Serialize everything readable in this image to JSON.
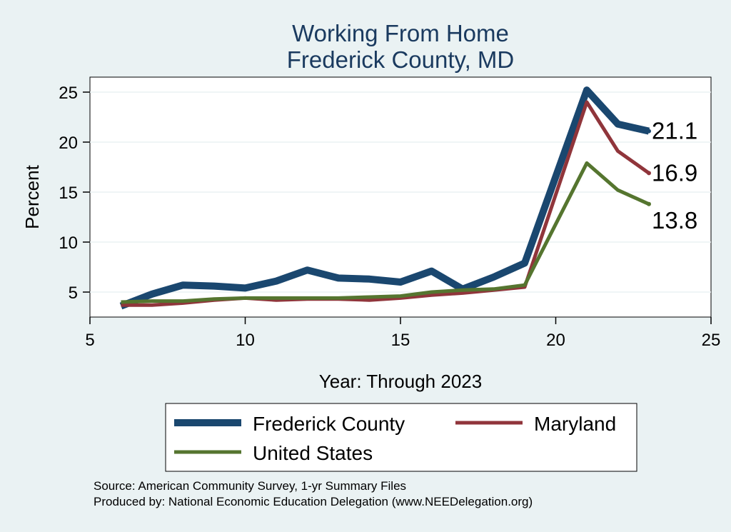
{
  "chart_data": {
    "type": "line",
    "title": "Working From Home",
    "subtitle": "Frederick County, MD",
    "xlabel": "Year: Through 2023",
    "ylabel": "Percent",
    "xlim": [
      5,
      25
    ],
    "ylim": [
      2.5,
      26.5
    ],
    "xticks": [
      5,
      10,
      15,
      20,
      25
    ],
    "yticks": [
      5,
      10,
      15,
      20,
      25
    ],
    "grid": true,
    "legend_position": "bottom",
    "series": [
      {
        "name": "Frederick County",
        "color": "#1a476f",
        "x": [
          6,
          7,
          8,
          9,
          10,
          11,
          12,
          13,
          14,
          15,
          16,
          17,
          18,
          19,
          21,
          22,
          23
        ],
        "y": [
          3.6,
          4.8,
          5.7,
          5.6,
          5.4,
          6.1,
          7.2,
          6.4,
          6.3,
          6.0,
          7.1,
          5.3,
          6.5,
          7.9,
          25.2,
          21.8,
          21.1
        ],
        "end_label": "21.1"
      },
      {
        "name": "Maryland",
        "color": "#90353b",
        "x": [
          6,
          7,
          8,
          9,
          10,
          11,
          12,
          13,
          14,
          15,
          16,
          17,
          18,
          19,
          21,
          22,
          23
        ],
        "y": [
          3.7,
          3.7,
          3.9,
          4.2,
          4.4,
          4.2,
          4.3,
          4.3,
          4.2,
          4.4,
          4.7,
          4.9,
          5.2,
          5.5,
          24.0,
          19.1,
          16.9
        ],
        "end_label": "16.9"
      },
      {
        "name": "United States",
        "color": "#55752f",
        "x": [
          6,
          7,
          8,
          9,
          10,
          11,
          12,
          13,
          14,
          15,
          16,
          17,
          18,
          19,
          21,
          22,
          23
        ],
        "y": [
          4.0,
          4.1,
          4.1,
          4.3,
          4.4,
          4.4,
          4.4,
          4.4,
          4.5,
          4.6,
          5.0,
          5.2,
          5.3,
          5.7,
          17.9,
          15.2,
          13.8
        ],
        "end_label": "13.8"
      }
    ]
  },
  "source": {
    "line1": "Source: American Community Survey, 1-yr Summary Files",
    "line2": "Produced by: National Economic Education Delegation (www.NEEDelegation.org)"
  }
}
